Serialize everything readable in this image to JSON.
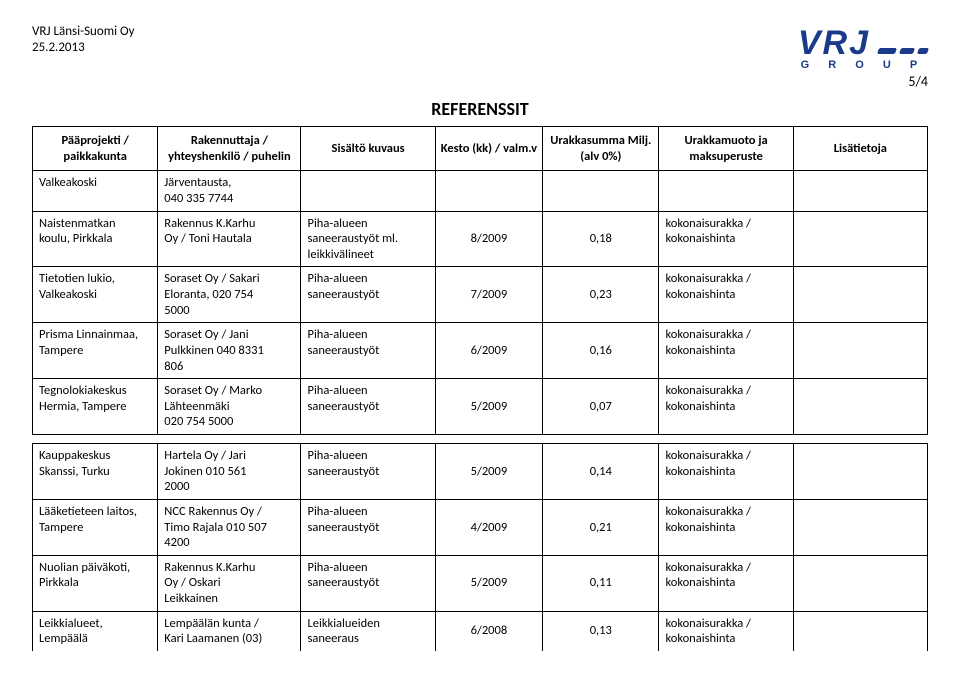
{
  "header": {
    "company": "VRJ Länsi-Suomi Oy",
    "date": "25.2.2013"
  },
  "logo": {
    "text": "VRJ",
    "sub": "G R O U P"
  },
  "page_number": "5/4",
  "title": "REFERENSSIT",
  "columns": [
    "Pääprojekti /\npaikkakunta",
    "Rakennuttaja /\nyhteyshenkilö /\npuhelin",
    "Sisältö kuvaus",
    "Kesto (kk) /\nvalm.v",
    "Urakkasumma\nMilj. (alv 0%)",
    "Urakkamuoto ja\nmaksuperuste",
    "Lisätietoja"
  ],
  "rows_top": [
    {
      "c1": "Valkeakoski",
      "c2": "Järventausta,\n040 335 7744",
      "c3": "",
      "c4": "",
      "c5": "",
      "c6": "",
      "c7": ""
    },
    {
      "c1": "Naistenmatkan\nkoulu, Pirkkala",
      "c2": "Rakennus K.Karhu\nOy / Toni Hautala",
      "c3": "Piha-alueen\nsaneeraustyöt ml.\nleikkivälineet",
      "c4": "8/2009",
      "c5": "0,18",
      "c6": "kokonaisurakka /\nkokonaishinta",
      "c7": ""
    },
    {
      "c1": "Tietotien lukio,\nValkeakoski",
      "c2": "Soraset Oy / Sakari\nEloranta, 020 754\n5000",
      "c3": "Piha-alueen\nsaneeraustyöt",
      "c4": "7/2009",
      "c5": "0,23",
      "c6": "kokonaisurakka /\nkokonaishinta",
      "c7": ""
    },
    {
      "c1": "Prisma Linnainmaa,\nTampere",
      "c2": "Soraset Oy / Jani\nPulkkinen 040 8331\n806",
      "c3": "Piha-alueen\nsaneeraustyöt",
      "c4": "6/2009",
      "c5": "0,16",
      "c6": "kokonaisurakka /\nkokonaishinta",
      "c7": ""
    },
    {
      "c1": "Tegnolokiakeskus\nHermia, Tampere",
      "c2": "Soraset Oy / Marko\nLähteenmäki\n020 754 5000",
      "c3": "Piha-alueen\nsaneeraustyöt",
      "c4": "5/2009",
      "c5": "0,07",
      "c6": "kokonaisurakka /\nkokonaishinta",
      "c7": ""
    }
  ],
  "rows_bottom": [
    {
      "c1": "Kauppakeskus\nSkanssi, Turku",
      "c2": "Hartela Oy / Jari\nJokinen 010 561\n2000",
      "c3": "Piha-alueen\nsaneeraustyöt",
      "c4": "5/2009",
      "c5": "0,14",
      "c6": "kokonaisurakka /\nkokonaishinta",
      "c7": ""
    },
    {
      "c1": "Lääketieteen laitos,\nTampere",
      "c2": "NCC Rakennus Oy /\nTimo Rajala 010 507\n4200",
      "c3": "Piha-alueen\nsaneeraustyöt",
      "c4": "4/2009",
      "c5": "0,21",
      "c6": "kokonaisurakka /\nkokonaishinta",
      "c7": ""
    },
    {
      "c1": "Nuolian päiväkoti,\nPirkkala",
      "c2": "Rakennus K.Karhu\nOy / Oskari\nLeikkainen",
      "c3": "Piha-alueen\nsaneeraustyöt",
      "c4": "5/2009",
      "c5": "0,11",
      "c6": "kokonaisurakka /\nkokonaishinta",
      "c7": ""
    },
    {
      "c1": "Leikkialueet,\nLempäälä",
      "c2": "Lempäälän kunta /\nKari Laamanen (03)",
      "c3": "Leikkialueiden\nsaneeraus",
      "c4": "6/2008",
      "c5": "0,13",
      "c6": "kokonaisurakka /\nkokonaishinta",
      "c7": ""
    }
  ]
}
